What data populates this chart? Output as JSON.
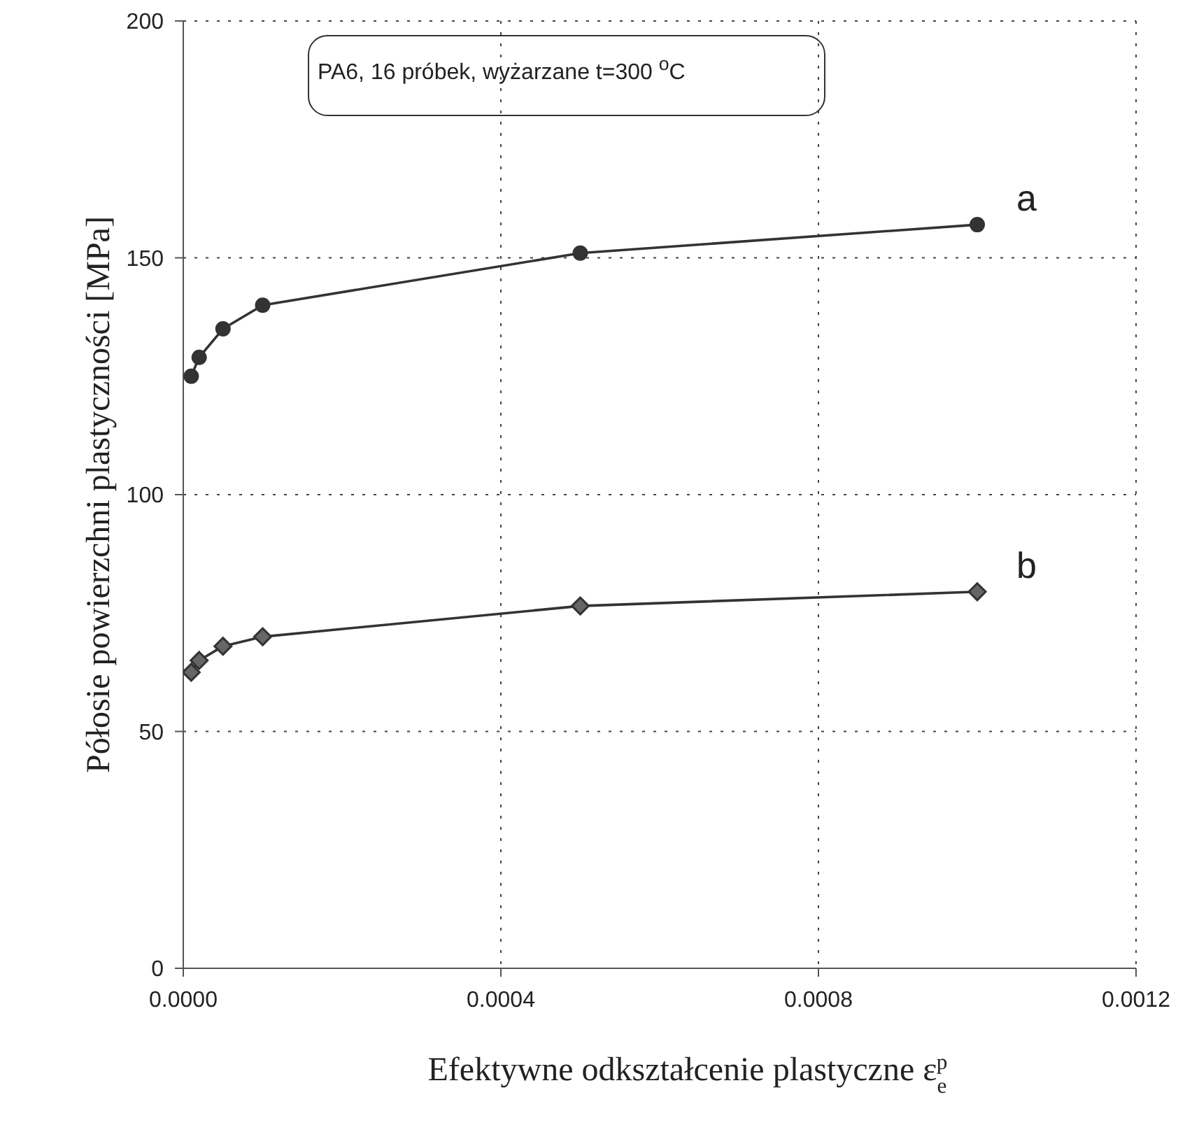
{
  "chart_data": {
    "type": "line",
    "xlabel": "Efektywne odkształcenie plastyczne ε$_{e}$$^{p}$",
    "ylabel": "Półosie powierzchni plastyczności [MPa]",
    "annotations": [
      "PA6, 16 próbek, wyżarzane  t=300 $^{o}$C"
    ],
    "xlim": [
      0,
      0.0012
    ],
    "xticks": [
      {
        "value": 0,
        "label": "0.0000"
      },
      {
        "value": 0.0004,
        "label": "0.0004"
      },
      {
        "value": 0.0008,
        "label": "0.0008"
      },
      {
        "value": 0.0012,
        "label": "0.0012"
      }
    ],
    "ylim": [
      0,
      200
    ],
    "yticks": [
      0,
      50,
      100,
      150,
      200
    ],
    "grid": true,
    "series": [
      {
        "name": "a",
        "color": "#333333",
        "marker": "circle",
        "x": [
          1e-05,
          2e-05,
          5e-05,
          0.0001,
          0.0005,
          0.001
        ],
        "values": [
          125,
          129,
          135,
          140,
          151,
          157
        ]
      },
      {
        "name": "b",
        "color": "#333333",
        "marker": "diamond",
        "x": [
          1e-05,
          2e-05,
          5e-05,
          0.0001,
          0.0005,
          0.001
        ],
        "values": [
          62.5,
          65,
          68,
          70,
          76.5,
          79.5
        ]
      }
    ]
  }
}
